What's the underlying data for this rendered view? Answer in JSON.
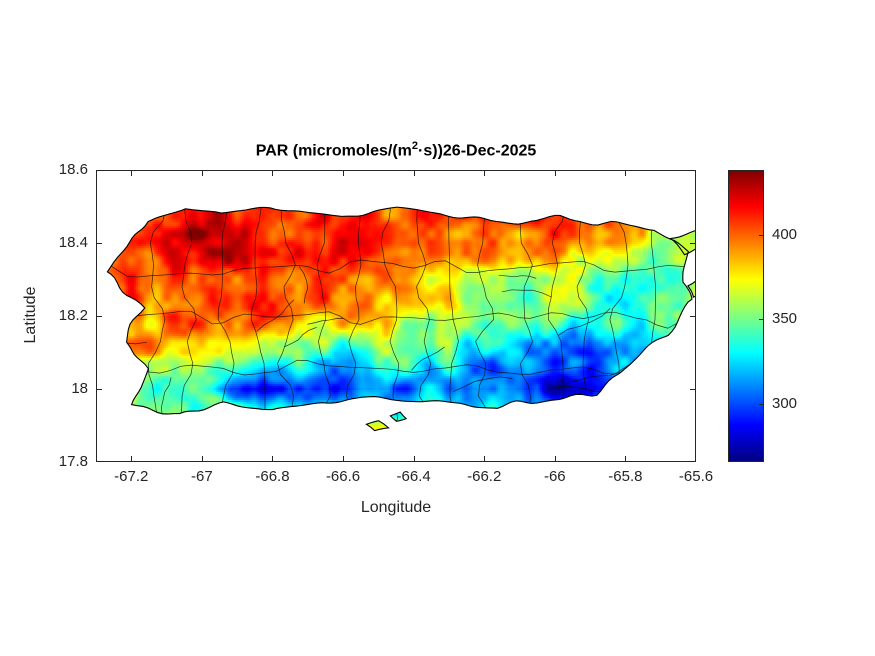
{
  "figure_title": {
    "pre": "PAR (micromoles/(m",
    "sup": "2",
    "post": "·s))26-Dec-2025"
  },
  "axes": {
    "xlabel": "Longitude",
    "ylabel": "Latitude"
  },
  "chart_data": {
    "type": "heatmap",
    "title": "PAR (micromoles/(m^2·s)) 26-Dec-2025",
    "variable": "PAR",
    "units": "micromoles/(m^2·s)",
    "date": "26-Dec-2025",
    "region": "Puerto Rico",
    "boundaries": "municipalities",
    "xlabel": "Longitude",
    "ylabel": "Latitude",
    "xlim": [
      -67.3,
      -65.6
    ],
    "ylim": [
      17.8,
      18.6
    ],
    "xticks": [
      -67.2,
      -67,
      -66.8,
      -66.6,
      -66.4,
      -66.2,
      -66,
      -65.8,
      -65.6
    ],
    "xtick_labels": [
      "-67.2",
      "-67",
      "-66.8",
      "-66.6",
      "-66.4",
      "-66.2",
      "-66",
      "-65.8",
      "-65.6"
    ],
    "yticks": [
      17.8,
      18,
      18.2,
      18.4,
      18.6
    ],
    "ytick_labels": [
      "17.8",
      "18",
      "18.2",
      "18.4",
      "18.6"
    ],
    "colormap": "jet",
    "clim": [
      266,
      438
    ],
    "colorbar_ticks": [
      300,
      350,
      400
    ],
    "colorbar_tick_labels": [
      "300",
      "350",
      "400"
    ],
    "grid": {
      "lon": [
        -67.2,
        -67.1,
        -67.0,
        -66.9,
        -66.8,
        -66.7,
        -66.6,
        -66.5,
        -66.4,
        -66.3,
        -66.2,
        -66.1,
        -66.0,
        -65.9,
        -65.8,
        -65.7,
        -65.6
      ],
      "lat": [
        18.5,
        18.4,
        18.3,
        18.2,
        18.1,
        18.0,
        17.9
      ],
      "values": [
        [
          408,
          415,
          420,
          416,
          412,
          415,
          410,
          412,
          406,
          410,
          404,
          408,
          412,
          402,
          392,
          396,
          390
        ],
        [
          405,
          416,
          424,
          420,
          414,
          418,
          412,
          406,
          402,
          408,
          400,
          398,
          402,
          394,
          368,
          352,
          360
        ],
        [
          398,
          406,
          412,
          408,
          402,
          406,
          398,
          392,
          384,
          378,
          368,
          362,
          372,
          352,
          332,
          342,
          352
        ],
        [
          392,
          398,
          404,
          400,
          396,
          392,
          388,
          380,
          368,
          358,
          352,
          348,
          358,
          344,
          338,
          352,
          362
        ],
        [
          378,
          384,
          390,
          382,
          372,
          346,
          332,
          342,
          350,
          338,
          328,
          318,
          308,
          298,
          318,
          338,
          348
        ],
        [
          345,
          348,
          332,
          308,
          292,
          288,
          298,
          308,
          304,
          314,
          298,
          288,
          282,
          278,
          298,
          328,
          342
        ],
        [
          372,
          368,
          362,
          358,
          368,
          374,
          378,
          368,
          358,
          352,
          348,
          342,
          336,
          328,
          338,
          348,
          352
        ]
      ]
    },
    "coastline": {
      "main_island": [
        [
          -67.16,
          18.46
        ],
        [
          -67.05,
          18.5
        ],
        [
          -66.95,
          18.48
        ],
        [
          -66.8,
          18.49
        ],
        [
          -66.6,
          18.47
        ],
        [
          -66.44,
          18.49
        ],
        [
          -66.26,
          18.47
        ],
        [
          -66.1,
          18.46
        ],
        [
          -65.99,
          18.47
        ],
        [
          -65.83,
          18.45
        ],
        [
          -65.71,
          18.43
        ],
        [
          -65.62,
          18.38
        ],
        [
          -65.64,
          18.3
        ],
        [
          -65.61,
          18.24
        ],
        [
          -65.68,
          18.15
        ],
        [
          -65.8,
          18.06
        ],
        [
          -65.88,
          17.99
        ],
        [
          -66.0,
          17.97
        ],
        [
          -66.16,
          17.95
        ],
        [
          -66.34,
          17.96
        ],
        [
          -66.54,
          17.98
        ],
        [
          -66.65,
          17.96
        ],
        [
          -66.8,
          17.94
        ],
        [
          -66.94,
          17.96
        ],
        [
          -67.06,
          17.93
        ],
        [
          -67.2,
          17.95
        ],
        [
          -67.16,
          18.05
        ],
        [
          -67.22,
          18.13
        ],
        [
          -67.17,
          18.22
        ],
        [
          -67.27,
          18.33
        ],
        [
          -67.22,
          18.39
        ]
      ],
      "islets": [
        [
          [
            -65.67,
            18.41
          ],
          [
            -65.61,
            18.43
          ],
          [
            -65.58,
            18.4
          ],
          [
            -65.63,
            18.37
          ]
        ],
        [
          [
            -65.63,
            18.29
          ],
          [
            -65.59,
            18.31
          ],
          [
            -65.57,
            18.27
          ],
          [
            -65.61,
            18.25
          ]
        ],
        [
          [
            -66.54,
            17.905
          ],
          [
            -66.5,
            17.915
          ],
          [
            -66.48,
            17.895
          ],
          [
            -66.52,
            17.885
          ]
        ],
        [
          [
            -66.46,
            17.93
          ],
          [
            -66.43,
            17.94
          ],
          [
            -66.42,
            17.92
          ],
          [
            -66.45,
            17.915
          ]
        ]
      ]
    }
  }
}
